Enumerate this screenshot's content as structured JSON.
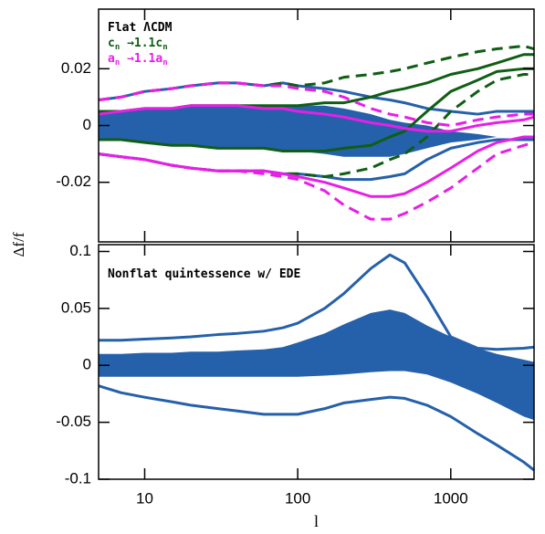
{
  "chart_data": [
    {
      "type": "line",
      "ylabel": "Δf/f",
      "annotations": [
        {
          "segments": [
            "Flat ΛCDM"
          ],
          "color": "#000000"
        },
        {
          "segments": [
            "c",
            "n",
            " →1.1c",
            "n"
          ],
          "color": "#0f5e14"
        },
        {
          "segments": [
            "a",
            "n",
            " →1.1a",
            "n"
          ],
          "color": "#e81ee8"
        }
      ],
      "x": [
        5,
        7,
        10,
        15,
        20,
        30,
        40,
        60,
        80,
        100,
        150,
        200,
        300,
        400,
        500,
        700,
        1000,
        1500,
        2000,
        3000,
        3500
      ],
      "xlim": [
        5,
        3500
      ],
      "log_x": true,
      "ylim": [
        -0.041,
        0.041
      ],
      "yticks": [
        -0.02,
        0,
        0.02
      ],
      "bands": [
        {
          "color": "#2560aa",
          "upper": [
            0.004,
            0.005,
            0.006,
            0.006,
            0.007,
            0.007,
            0.007,
            0.007,
            0.007,
            0.007,
            0.007,
            0.006,
            0.004,
            0.002,
            0.001,
            0,
            -0.002,
            -0.003,
            -0.004,
            -0.004,
            -0.004
          ],
          "lower": [
            -0.005,
            -0.005,
            -0.006,
            -0.007,
            -0.007,
            -0.008,
            -0.008,
            -0.008,
            -0.009,
            -0.009,
            -0.01,
            -0.011,
            -0.011,
            -0.011,
            -0.01,
            -0.008,
            -0.006,
            -0.005,
            -0.004,
            -0.004,
            -0.004
          ]
        }
      ],
      "series": [
        {
          "color": "#2560aa",
          "dashed": false,
          "values": [
            0.009,
            0.01,
            0.012,
            0.013,
            0.014,
            0.015,
            0.015,
            0.014,
            0.015,
            0.014,
            0.013,
            0.012,
            0.01,
            0.009,
            0.008,
            0.006,
            0.005,
            0.004,
            0.005,
            0.005,
            0.005
          ]
        },
        {
          "color": "#2560aa",
          "dashed": false,
          "values": [
            -0.01,
            -0.011,
            -0.012,
            -0.014,
            -0.015,
            -0.016,
            -0.016,
            -0.016,
            -0.017,
            -0.017,
            -0.018,
            -0.019,
            -0.019,
            -0.018,
            -0.017,
            -0.012,
            -0.008,
            -0.006,
            -0.005,
            -0.005,
            -0.005
          ]
        },
        {
          "color": "#0f5e14",
          "dashed": false,
          "values": [
            0.005,
            0.005,
            0.006,
            0.006,
            0.007,
            0.007,
            0.007,
            0.007,
            0.007,
            0.007,
            0.008,
            0.008,
            0.01,
            0.012,
            0.013,
            0.015,
            0.018,
            0.02,
            0.022,
            0.025,
            0.025
          ]
        },
        {
          "color": "#0f5e14",
          "dashed": false,
          "values": [
            -0.005,
            -0.005,
            -0.006,
            -0.007,
            -0.007,
            -0.008,
            -0.008,
            -0.008,
            -0.009,
            -0.009,
            -0.009,
            -0.008,
            -0.007,
            -0.004,
            -0.002,
            0.005,
            0.012,
            0.016,
            0.019,
            0.02,
            0.02
          ]
        },
        {
          "color": "#0f5e14",
          "dashed": true,
          "values": [
            0.009,
            0.01,
            0.012,
            0.013,
            0.014,
            0.015,
            0.015,
            0.014,
            0.015,
            0.014,
            0.015,
            0.017,
            0.018,
            0.019,
            0.02,
            0.022,
            0.024,
            0.026,
            0.027,
            0.028,
            0.027
          ]
        },
        {
          "color": "#0f5e14",
          "dashed": true,
          "values": [
            -0.01,
            -0.011,
            -0.012,
            -0.014,
            -0.015,
            -0.016,
            -0.016,
            -0.016,
            -0.017,
            -0.017,
            -0.018,
            -0.017,
            -0.015,
            -0.012,
            -0.01,
            -0.004,
            0.005,
            0.012,
            0.016,
            0.018,
            0.018
          ]
        },
        {
          "color": "#e81ee8",
          "dashed": false,
          "values": [
            0.004,
            0.005,
            0.006,
            0.006,
            0.007,
            0.007,
            0.007,
            0.006,
            0.006,
            0.005,
            0.004,
            0.003,
            0.001,
            0,
            -0.001,
            -0.002,
            -0.002,
            0,
            0.001,
            0.002,
            0.003
          ]
        },
        {
          "color": "#e81ee8",
          "dashed": false,
          "values": [
            -0.01,
            -0.011,
            -0.012,
            -0.014,
            -0.015,
            -0.016,
            -0.016,
            -0.016,
            -0.017,
            -0.018,
            -0.02,
            -0.022,
            -0.025,
            -0.025,
            -0.024,
            -0.02,
            -0.015,
            -0.009,
            -0.006,
            -0.004,
            -0.004
          ]
        },
        {
          "color": "#e81ee8",
          "dashed": true,
          "values": [
            0.009,
            0.01,
            0.012,
            0.013,
            0.014,
            0.015,
            0.015,
            0.014,
            0.014,
            0.013,
            0.012,
            0.01,
            0.006,
            0.004,
            0.003,
            0.001,
            0,
            0.002,
            0.003,
            0.004,
            0.004
          ]
        },
        {
          "color": "#e81ee8",
          "dashed": true,
          "values": [
            -0.01,
            -0.011,
            -0.012,
            -0.014,
            -0.015,
            -0.016,
            -0.016,
            -0.017,
            -0.018,
            -0.019,
            -0.023,
            -0.028,
            -0.033,
            -0.033,
            -0.031,
            -0.027,
            -0.022,
            -0.015,
            -0.01,
            -0.007,
            -0.006
          ]
        }
      ]
    },
    {
      "type": "line",
      "xlabel": "l",
      "annotations": [
        {
          "segments": [
            "Nonflat quintessence w/ EDE"
          ],
          "color": "#000000"
        }
      ],
      "x": [
        5,
        7,
        10,
        15,
        20,
        30,
        40,
        60,
        80,
        100,
        150,
        200,
        300,
        400,
        500,
        700,
        1000,
        1500,
        2000,
        3000,
        3500
      ],
      "xlim": [
        5,
        3500
      ],
      "log_x": true,
      "xticks": [
        10,
        100,
        1000
      ],
      "ylim": [
        -0.1,
        0.106
      ],
      "yticks": [
        -0.1,
        -0.05,
        0,
        0.05,
        0.1
      ],
      "bands": [
        {
          "color": "#2560aa",
          "upper": [
            0.01,
            0.01,
            0.011,
            0.011,
            0.012,
            0.012,
            0.013,
            0.014,
            0.016,
            0.02,
            0.028,
            0.036,
            0.046,
            0.049,
            0.046,
            0.035,
            0.025,
            0.015,
            0.01,
            0.005,
            0.003
          ],
          "lower": [
            -0.01,
            -0.01,
            -0.01,
            -0.01,
            -0.01,
            -0.01,
            -0.01,
            -0.01,
            -0.01,
            -0.01,
            -0.009,
            -0.008,
            -0.006,
            -0.005,
            -0.005,
            -0.008,
            -0.015,
            -0.025,
            -0.033,
            -0.045,
            -0.048
          ]
        }
      ],
      "series": [
        {
          "color": "#2560aa",
          "dashed": false,
          "values": [
            0.022,
            0.022,
            0.023,
            0.024,
            0.025,
            0.027,
            0.028,
            0.03,
            0.033,
            0.037,
            0.05,
            0.063,
            0.085,
            0.097,
            0.09,
            0.06,
            0.025,
            0.015,
            0.014,
            0.015,
            0.016
          ]
        },
        {
          "color": "#2560aa",
          "dashed": false,
          "values": [
            -0.018,
            -0.024,
            -0.028,
            -0.032,
            -0.035,
            -0.038,
            -0.04,
            -0.043,
            -0.043,
            -0.043,
            -0.038,
            -0.033,
            -0.03,
            -0.028,
            -0.029,
            -0.035,
            -0.045,
            -0.06,
            -0.07,
            -0.085,
            -0.092
          ]
        }
      ]
    }
  ]
}
